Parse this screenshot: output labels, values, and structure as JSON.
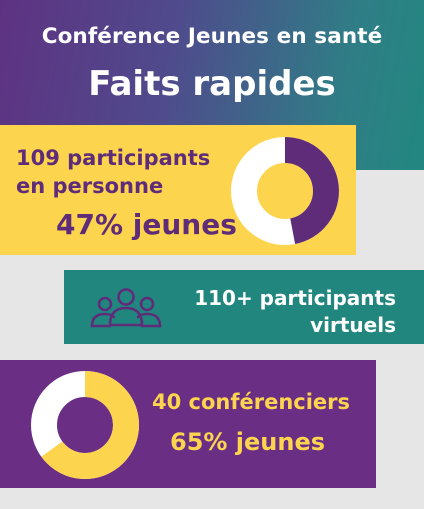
{
  "header": {
    "title": "Conférence Jeunes en santé",
    "subtitle": "Faits rapides"
  },
  "in_person": {
    "line1": "109 participants",
    "line2": "en personne",
    "percent_label": "47% jeunes",
    "youth_fraction": 0.47
  },
  "virtual": {
    "icon": "people-group-icon",
    "line1": "110+ participants",
    "line2": "virtuels"
  },
  "speakers": {
    "line1": "40 conférenciers",
    "percent_label": "65% jeunes",
    "youth_fraction": 0.65
  },
  "colors": {
    "purple": "#6a2f85",
    "teal": "#21877e",
    "yellow": "#fdd44e",
    "white": "#ffffff",
    "gray": "#e6e6e6"
  }
}
